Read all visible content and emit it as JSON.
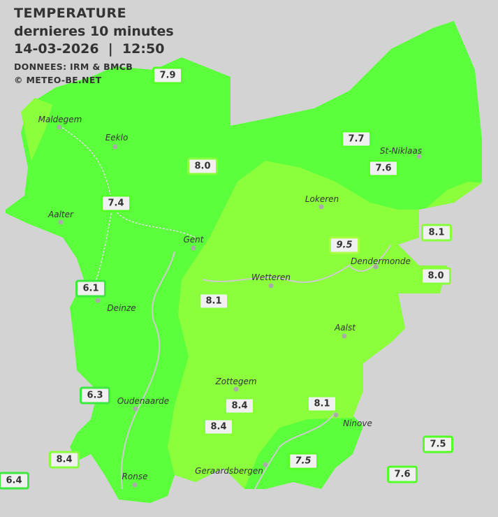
{
  "header": {
    "title": "TEMPERATURE",
    "subtitle": "dernieres 10 minutes",
    "datetime": "14-03-2026  |  12:50",
    "source": "DONNEES: IRM & BMCB",
    "copyright": "© METEO-BE.NET"
  },
  "colors": {
    "background": "#d3d3d3",
    "zone_7": "#5cff3c",
    "zone_8": "#8cff3c",
    "border_6": "#3ee83e",
    "border_7": "#55ff2a",
    "border_8": "#88ff3c",
    "border_9": "#aaff44"
  },
  "cities": [
    "Maldegem",
    "Eeklo",
    "Aalter",
    "Gent",
    "Lokeren",
    "St-Niklaas",
    "Dendermonde",
    "Wetteren",
    "Aalst",
    "Zottegem",
    "Oudenaarde",
    "Geraardsbergen",
    "Ninove",
    "Ronse",
    "Deinze"
  ],
  "stations": [
    "7.9",
    "7.7",
    "7.6",
    "8.0",
    "7.4",
    "8.1",
    "9.5",
    "8.0",
    "6.1",
    "8.1",
    "6.3",
    "8.4",
    "8.1",
    "8.4",
    "7.5",
    "8.4",
    "7.5",
    "7.6",
    "6.4"
  ]
}
